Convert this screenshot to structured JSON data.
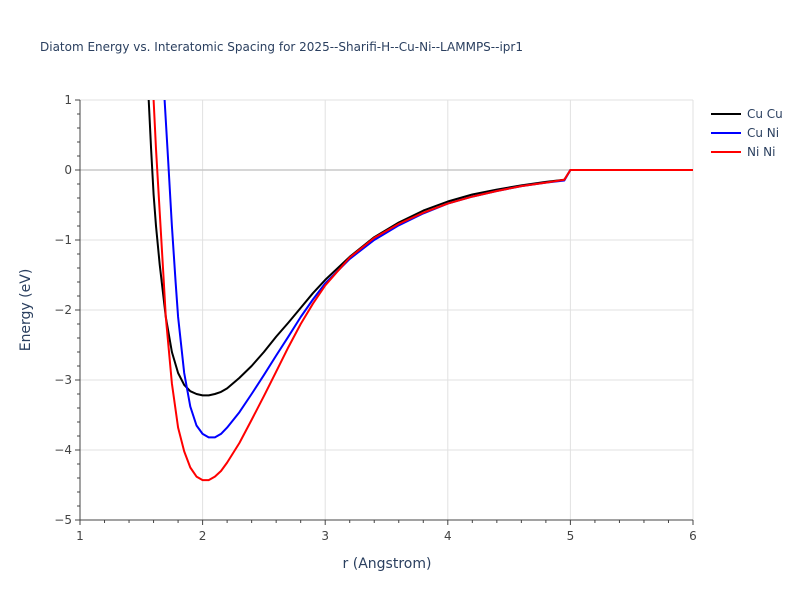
{
  "chart_data": {
    "type": "line",
    "title": "Diatom Energy vs. Interatomic Spacing for 2025--Sharifi-H--Cu-Ni--LAMMPS--ipr1",
    "xlabel": "r (Angstrom)",
    "ylabel": "Energy (eV)",
    "xlim": [
      1,
      6
    ],
    "ylim": [
      -5,
      1
    ],
    "xticks": [
      1,
      2,
      3,
      4,
      5,
      6
    ],
    "yticks": [
      1,
      0,
      -1,
      -2,
      -3,
      -4,
      -5
    ],
    "xtick_labels": [
      "1",
      "2",
      "3",
      "4",
      "5",
      "6"
    ],
    "ytick_labels": [
      "1",
      "0",
      "−1",
      "−2",
      "−3",
      "−4",
      "−5"
    ],
    "grid": true,
    "legend_position": "top-right",
    "series": [
      {
        "name": "Cu Cu",
        "color": "#000000",
        "x": [
          1.56,
          1.58,
          1.6,
          1.62,
          1.65,
          1.7,
          1.75,
          1.8,
          1.85,
          1.9,
          1.95,
          2.0,
          2.05,
          2.1,
          2.15,
          2.2,
          2.3,
          2.4,
          2.5,
          2.6,
          2.7,
          2.8,
          2.9,
          3.0,
          3.2,
          3.4,
          3.6,
          3.8,
          4.0,
          4.2,
          4.4,
          4.6,
          4.8,
          4.95,
          5.0,
          5.5,
          6.0
        ],
        "y": [
          1.0,
          0.3,
          -0.35,
          -0.8,
          -1.35,
          -2.1,
          -2.6,
          -2.9,
          -3.07,
          -3.16,
          -3.2,
          -3.22,
          -3.22,
          -3.2,
          -3.17,
          -3.12,
          -2.97,
          -2.8,
          -2.6,
          -2.38,
          -2.18,
          -1.97,
          -1.76,
          -1.57,
          -1.24,
          -0.96,
          -0.75,
          -0.58,
          -0.45,
          -0.35,
          -0.28,
          -0.22,
          -0.17,
          -0.14,
          0.0,
          0.0,
          0.0
        ]
      },
      {
        "name": "Cu Ni",
        "color": "#0000ff",
        "x": [
          1.69,
          1.72,
          1.75,
          1.78,
          1.8,
          1.85,
          1.9,
          1.95,
          2.0,
          2.05,
          2.1,
          2.15,
          2.2,
          2.3,
          2.4,
          2.5,
          2.6,
          2.7,
          2.8,
          2.9,
          3.0,
          3.2,
          3.4,
          3.6,
          3.8,
          4.0,
          4.2,
          4.4,
          4.6,
          4.8,
          4.95,
          5.0,
          5.5,
          6.0
        ],
        "y": [
          1.0,
          0.1,
          -0.8,
          -1.6,
          -2.1,
          -2.9,
          -3.38,
          -3.65,
          -3.77,
          -3.82,
          -3.82,
          -3.77,
          -3.68,
          -3.46,
          -3.2,
          -2.93,
          -2.65,
          -2.38,
          -2.1,
          -1.85,
          -1.62,
          -1.27,
          -1.0,
          -0.79,
          -0.62,
          -0.48,
          -0.38,
          -0.3,
          -0.23,
          -0.18,
          -0.15,
          0.0,
          0.0,
          0.0
        ]
      },
      {
        "name": "Ni Ni",
        "color": "#ff0000",
        "x": [
          1.6,
          1.62,
          1.65,
          1.68,
          1.7,
          1.75,
          1.8,
          1.85,
          1.9,
          1.95,
          2.0,
          2.05,
          2.1,
          2.15,
          2.2,
          2.3,
          2.4,
          2.5,
          2.6,
          2.7,
          2.8,
          2.9,
          3.0,
          3.2,
          3.4,
          3.6,
          3.8,
          4.0,
          4.2,
          4.4,
          4.6,
          4.8,
          4.95,
          5.0,
          5.5,
          6.0
        ],
        "y": [
          1.0,
          0.3,
          -0.6,
          -1.5,
          -2.1,
          -3.05,
          -3.68,
          -4.02,
          -4.25,
          -4.38,
          -4.43,
          -4.43,
          -4.38,
          -4.3,
          -4.18,
          -3.9,
          -3.57,
          -3.23,
          -2.88,
          -2.53,
          -2.2,
          -1.91,
          -1.65,
          -1.25,
          -0.97,
          -0.77,
          -0.61,
          -0.48,
          -0.38,
          -0.3,
          -0.23,
          -0.18,
          -0.14,
          0.0,
          0.0,
          0.0
        ]
      }
    ]
  }
}
